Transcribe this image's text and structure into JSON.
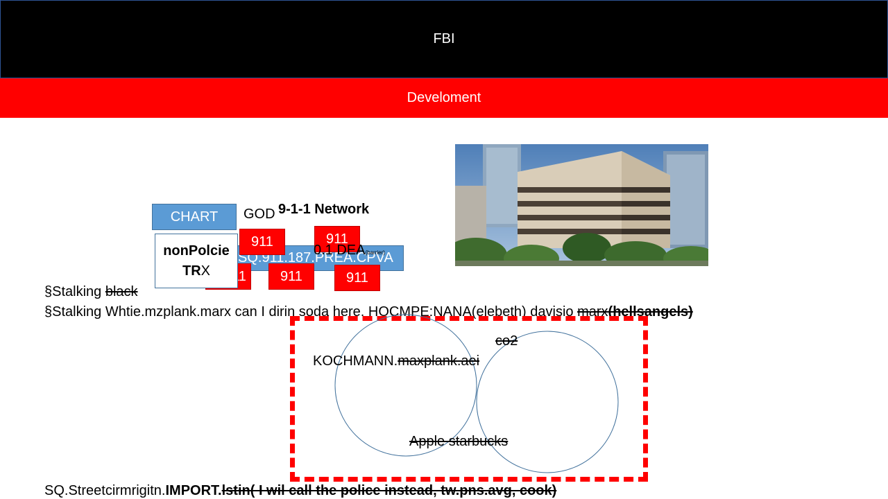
{
  "slide": {
    "title": "FBI",
    "subtitle": "Develoment"
  },
  "diagram": {
    "chart_button": "CHART",
    "god_label": "GOD",
    "network_label": "9-1-1 Network",
    "nonpolice_line1": "nonPolcie",
    "nonpolice_line2_bold": "TR",
    "nonpolice_line2_normal": "X",
    "sq_box_text": "SQ.911.187.PREA.CPVA",
    "dea_text": "0.1 DEA",
    "dea_sub": "(barrier)",
    "badges": [
      "911",
      "911",
      "911",
      "911",
      "911"
    ]
  },
  "lines": {
    "line1_prefix": "§Stalking ",
    "line1_struck": "black",
    "line2_prefix": "§Stalking Whtie.mzplank.marx can I dirin soda here. HOCMPE:NANA(elebeth) davisio ",
    "line2_struck": "marx",
    "line2_struck_bold": "(hellsangels)",
    "bottom_prefix": "SQ.Streetcirmrigitn.",
    "bottom_bold": "IMPORT.",
    "bottom_struck_bold": "lstin( I wil call the police instead, tw.pns.avg, cook)"
  },
  "venn": {
    "left_label_prefix": "KOCHMANN.",
    "left_label_struck": "maxplank.aei",
    "right_label_struck": "co2",
    "bottom_label_struck": "Apple starbucks"
  },
  "photo": {
    "description_name": "office-building-photo"
  },
  "colors": {
    "title_bg": "#000000",
    "subtitle_bg": "#ff0000",
    "blue_box": "#5b9bd5",
    "red_box": "#ff0000",
    "dashed_border": "#ff0000",
    "circle_stroke": "#41719c"
  }
}
